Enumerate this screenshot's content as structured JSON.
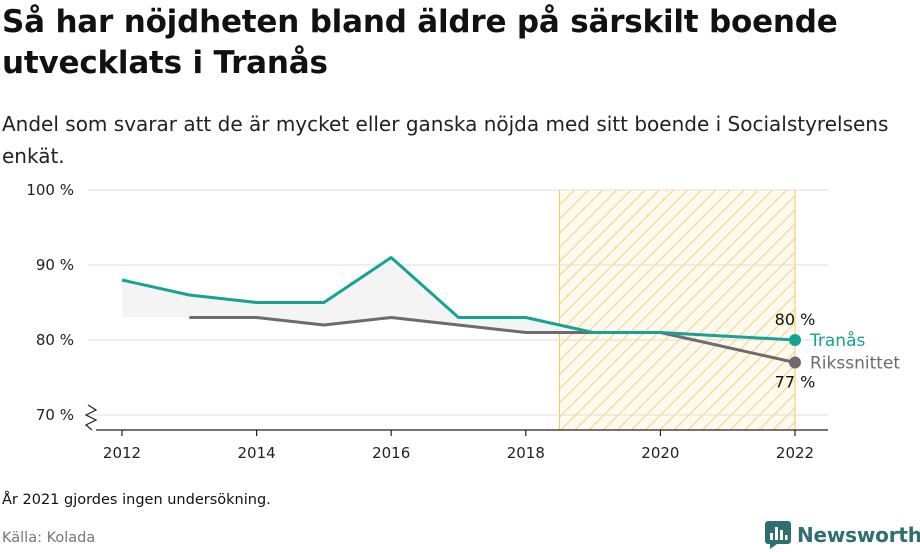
{
  "title": "Så har nöjdheten bland äldre på särskilt boende utvecklats i Tranås",
  "subtitle": "Andel som svarar att de är mycket eller ganska nöjda med sitt boende i Socialstyrelsens enkät.",
  "note": "År 2021 gjordes ingen undersökning.",
  "source": "Källa: Kolada",
  "brand": "Newsworthy",
  "brand_icon": "bar-chart-logo-icon",
  "chart_data": {
    "type": "line",
    "y_ticks": [
      "100 %",
      "90 %",
      "80 %",
      "70 %"
    ],
    "y_tick_values": [
      100,
      90,
      80,
      70
    ],
    "x_ticks": [
      "2012",
      "2014",
      "2016",
      "2018",
      "2020",
      "2022"
    ],
    "x_tick_values": [
      2012,
      2014,
      2016,
      2018,
      2020,
      2022
    ],
    "xlim": [
      2011.5,
      2022.5
    ],
    "ylim": [
      68.5,
      100
    ],
    "y_axis_break": true,
    "grid": true,
    "highlight_range": [
      2018.5,
      2022
    ],
    "highlight_color": "#f5c75a",
    "series": [
      {
        "name": "Tranås",
        "color": "#16a394",
        "x": [
          2012,
          2013,
          2014,
          2015,
          2016,
          2017,
          2018,
          2019,
          2020,
          2022
        ],
        "values": [
          88,
          86,
          85,
          85,
          91,
          83,
          83,
          81,
          81,
          80
        ],
        "end_label": "80 %"
      },
      {
        "name": "Rikssnittet",
        "color": "#6e6a70",
        "x": [
          2013,
          2014,
          2015,
          2016,
          2017,
          2018,
          2019,
          2020,
          2022
        ],
        "values": [
          83,
          83,
          82,
          83,
          82,
          81,
          81,
          81,
          77
        ],
        "end_label": "77 %"
      }
    ]
  }
}
